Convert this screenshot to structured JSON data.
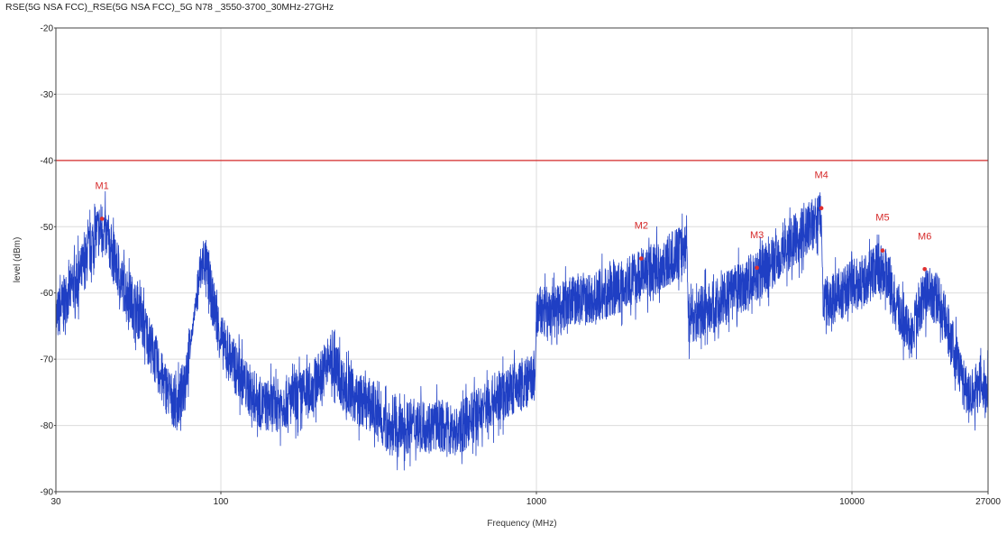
{
  "chart_data": {
    "type": "line",
    "title": "RSE(5G NSA FCC)_RSE(5G NSA FCC)_5G N78 _3550-3700_30MHz-27GHz",
    "xlabel": "Frequency (MHz)",
    "ylabel": "level (dBm)",
    "x_scale": "log",
    "xlim": [
      30,
      27000
    ],
    "ylim": [
      -90,
      -20
    ],
    "x_ticks": [
      30,
      100,
      1000,
      10000,
      27000
    ],
    "x_tick_labels": [
      "30",
      "100",
      "1000",
      "10000",
      "27000"
    ],
    "y_ticks": [
      -90,
      -80,
      -70,
      -60,
      -50,
      -40,
      -30,
      -20
    ],
    "y_tick_labels": [
      "-90",
      "-80",
      "-70",
      "-60",
      "-50",
      "-40",
      "-30",
      "-20"
    ],
    "grid": true,
    "limit_line": {
      "y": -40,
      "color": "#d62a2a"
    },
    "series": [
      {
        "color": "#1f3fc4",
        "points": [
          [
            30,
            -64
          ],
          [
            32,
            -61
          ],
          [
            34,
            -59
          ],
          [
            36,
            -57
          ],
          [
            38,
            -54
          ],
          [
            40,
            -51
          ],
          [
            42,
            -50
          ],
          [
            44,
            -52
          ],
          [
            46,
            -55
          ],
          [
            48,
            -58
          ],
          [
            52,
            -61
          ],
          [
            56,
            -64
          ],
          [
            60,
            -68
          ],
          [
            65,
            -73
          ],
          [
            70,
            -76
          ],
          [
            73,
            -77
          ],
          [
            76,
            -74
          ],
          [
            80,
            -68
          ],
          [
            84,
            -60
          ],
          [
            86,
            -57
          ],
          [
            88,
            -55
          ],
          [
            90,
            -56
          ],
          [
            93,
            -60
          ],
          [
            97,
            -64
          ],
          [
            100,
            -67
          ],
          [
            105,
            -69
          ],
          [
            110,
            -71
          ],
          [
            120,
            -74
          ],
          [
            135,
            -77
          ],
          [
            150,
            -77
          ],
          [
            170,
            -76
          ],
          [
            190,
            -75
          ],
          [
            210,
            -72
          ],
          [
            220,
            -70
          ],
          [
            230,
            -71
          ],
          [
            245,
            -74
          ],
          [
            270,
            -76
          ],
          [
            300,
            -77
          ],
          [
            330,
            -80
          ],
          [
            360,
            -81
          ],
          [
            400,
            -80
          ],
          [
            450,
            -80
          ],
          [
            500,
            -80
          ],
          [
            560,
            -81
          ],
          [
            620,
            -79
          ],
          [
            700,
            -77
          ],
          [
            800,
            -75
          ],
          [
            900,
            -74
          ],
          [
            990,
            -73
          ],
          [
            1000,
            -63
          ],
          [
            1100,
            -63
          ],
          [
            1300,
            -61
          ],
          [
            1500,
            -61
          ],
          [
            1700,
            -60
          ],
          [
            2000,
            -58
          ],
          [
            2200,
            -57
          ],
          [
            2500,
            -56
          ],
          [
            2800,
            -54
          ],
          [
            3000,
            -53
          ],
          [
            3030,
            -64
          ],
          [
            3300,
            -63
          ],
          [
            3700,
            -62
          ],
          [
            4200,
            -60
          ],
          [
            4800,
            -58
          ],
          [
            5500,
            -56
          ],
          [
            6200,
            -53
          ],
          [
            7000,
            -51
          ],
          [
            7800,
            -49
          ],
          [
            8000,
            -48
          ],
          [
            8100,
            -62
          ],
          [
            8600,
            -61
          ],
          [
            9300,
            -60
          ],
          [
            10000,
            -59
          ],
          [
            11000,
            -58
          ],
          [
            12200,
            -56
          ],
          [
            12800,
            -57
          ],
          [
            13600,
            -61
          ],
          [
            14500,
            -64
          ],
          [
            15500,
            -67
          ],
          [
            16300,
            -62
          ],
          [
            17300,
            -60
          ],
          [
            18800,
            -61
          ],
          [
            20000,
            -65
          ],
          [
            21500,
            -70
          ],
          [
            22700,
            -74
          ],
          [
            24000,
            -75
          ],
          [
            25500,
            -74
          ],
          [
            27000,
            -75
          ]
        ]
      }
    ],
    "markers": [
      {
        "label": "M1",
        "x": 42,
        "y": -48.8
      },
      {
        "label": "M2",
        "x": 2150,
        "y": -54.8
      },
      {
        "label": "M3",
        "x": 5000,
        "y": -56.2
      },
      {
        "label": "M4",
        "x": 8000,
        "y": -47.2
      },
      {
        "label": "M5",
        "x": 12500,
        "y": -53.6
      },
      {
        "label": "M6",
        "x": 17000,
        "y": -56.4
      }
    ]
  }
}
